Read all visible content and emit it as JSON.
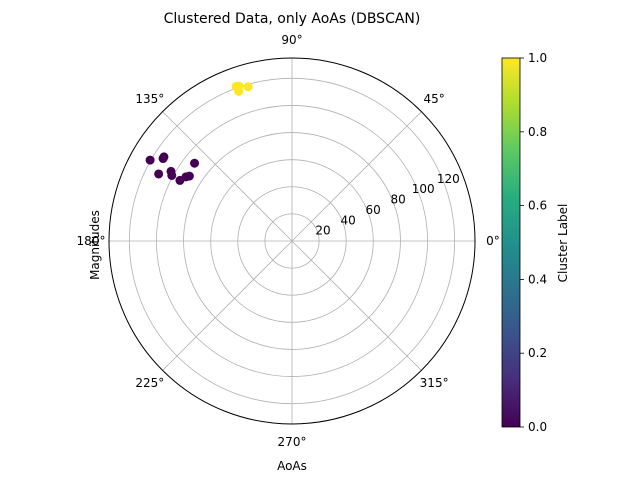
{
  "chart_data": {
    "type": "scatter",
    "subtype": "polar",
    "title": "Clustered Data, only AoAs (DBSCAN)",
    "xlabel": "AoAs",
    "ylabel": "Magnitudes",
    "theta_ticks": [
      "0°",
      "45°",
      "90°",
      "135°",
      "180°",
      "225°",
      "270°",
      "315°"
    ],
    "theta_tick_values_deg": [
      0,
      45,
      90,
      135,
      180,
      225,
      270,
      315
    ],
    "r_ticks": [
      "20",
      "40",
      "60",
      "80",
      "100",
      "120"
    ],
    "r_tick_values": [
      20,
      40,
      60,
      80,
      100,
      120
    ],
    "r_lim": [
      0,
      135
    ],
    "grid": true,
    "series": [
      {
        "cluster": 1,
        "color": "#fde725",
        "points": [
          {
            "theta": 108.9,
            "r": 120.8
          },
          {
            "theta": 109.6,
            "r": 117.2
          },
          {
            "theta": 109.9,
            "r": 121.2
          },
          {
            "theta": 105.9,
            "r": 118.3
          }
        ]
      },
      {
        "cluster": 0,
        "color": "#440154",
        "points": [
          {
            "theta": 150.3,
            "r": 120.5
          },
          {
            "theta": 147.4,
            "r": 112.9
          },
          {
            "theta": 146.7,
            "r": 113.0
          },
          {
            "theta": 153.3,
            "r": 110.1
          },
          {
            "theta": 150.1,
            "r": 103.0
          },
          {
            "theta": 151.4,
            "r": 101.0
          },
          {
            "theta": 151.6,
            "r": 94.0
          },
          {
            "theta": 148.8,
            "r": 91.4
          },
          {
            "theta": 147.7,
            "r": 89.6
          },
          {
            "theta": 141.4,
            "r": 92.0
          }
        ]
      }
    ],
    "colorbar": {
      "label": "Cluster Label",
      "min": 0.0,
      "max": 1.0,
      "ticks": [
        "0.0",
        "0.2",
        "0.4",
        "0.6",
        "0.8",
        "1.0"
      ],
      "tick_values": [
        0.0,
        0.2,
        0.4,
        0.6,
        0.8,
        1.0
      ],
      "colormap": "viridis"
    }
  }
}
